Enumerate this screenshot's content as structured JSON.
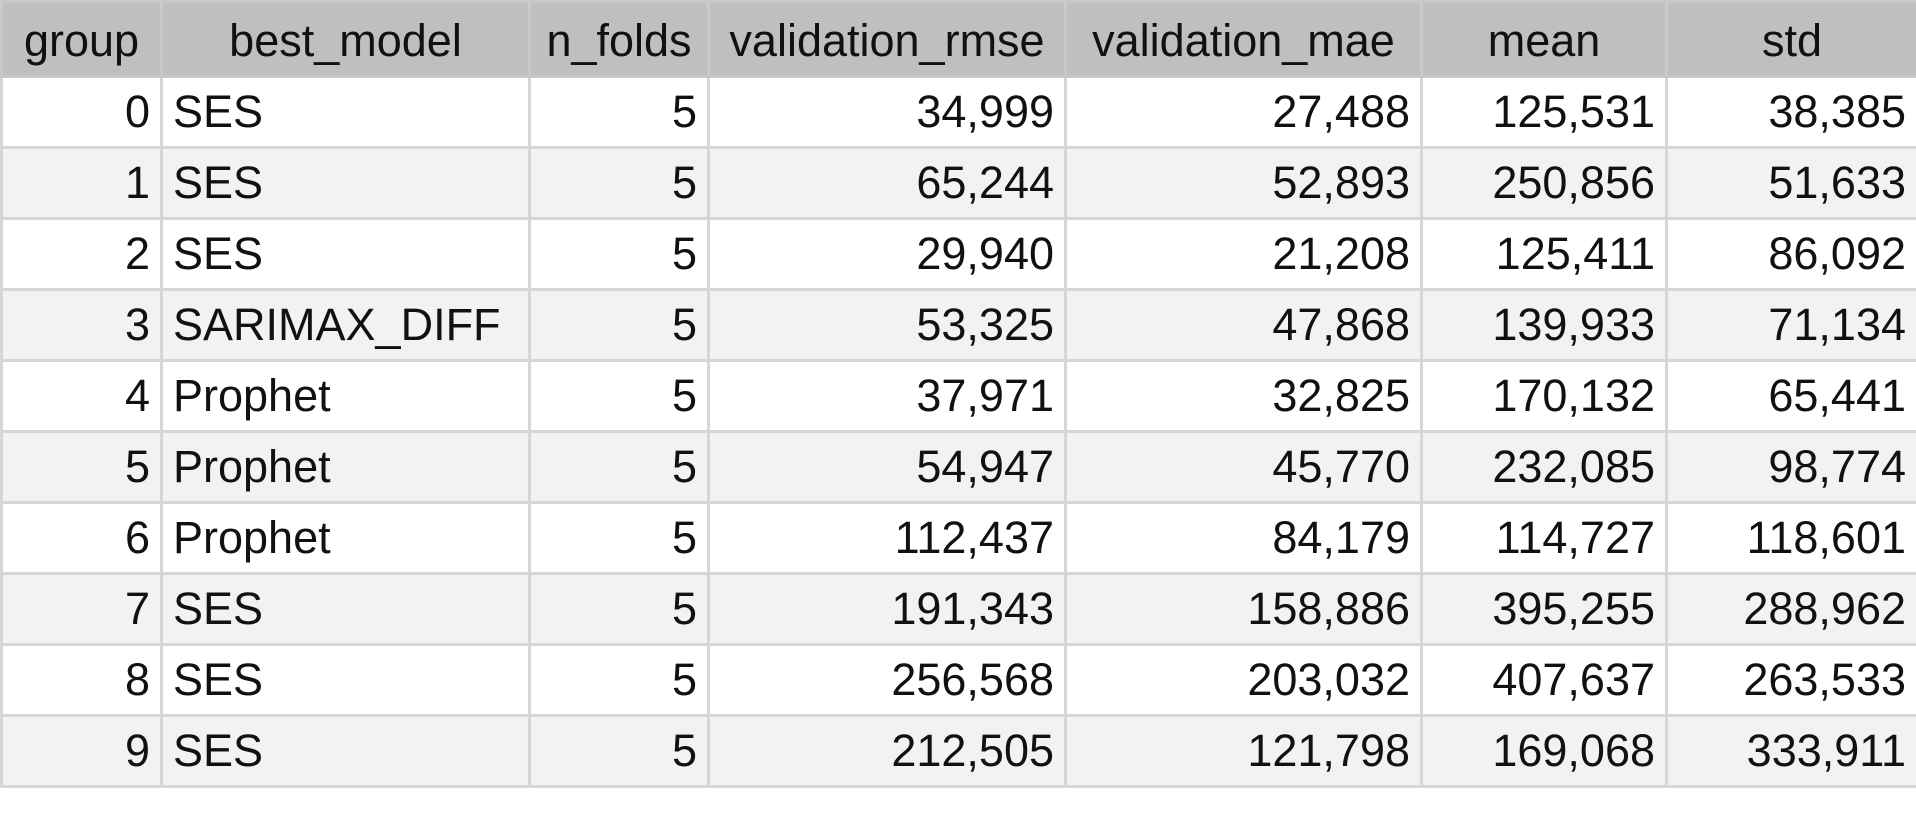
{
  "table": {
    "columns": [
      "group",
      "best_model",
      "n_folds",
      "validation_rmse",
      "validation_mae",
      "mean",
      "std"
    ],
    "rows": [
      [
        "0",
        "SES",
        "5",
        "34,999",
        "27,488",
        "125,531",
        "38,385"
      ],
      [
        "1",
        "SES",
        "5",
        "65,244",
        "52,893",
        "250,856",
        "51,633"
      ],
      [
        "2",
        "SES",
        "5",
        "29,940",
        "21,208",
        "125,411",
        "86,092"
      ],
      [
        "3",
        "SARIMAX_DIFF",
        "5",
        "53,325",
        "47,868",
        "139,933",
        "71,134"
      ],
      [
        "4",
        "Prophet",
        "5",
        "37,971",
        "32,825",
        "170,132",
        "65,441"
      ],
      [
        "5",
        "Prophet",
        "5",
        "54,947",
        "45,770",
        "232,085",
        "98,774"
      ],
      [
        "6",
        "Prophet",
        "5",
        "112,437",
        "84,179",
        "114,727",
        "118,601"
      ],
      [
        "7",
        "SES",
        "5",
        "191,343",
        "158,886",
        "395,255",
        "288,962"
      ],
      [
        "8",
        "SES",
        "5",
        "256,568",
        "203,032",
        "407,637",
        "263,533"
      ],
      [
        "9",
        "SES",
        "5",
        "212,505",
        "121,798",
        "169,068",
        "333,911"
      ]
    ]
  }
}
